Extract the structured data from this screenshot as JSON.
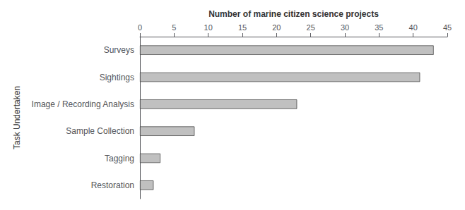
{
  "chart_data": {
    "type": "bar",
    "orientation": "horizontal",
    "xlabel": "Number of marine citizen science projects",
    "ylabel": "Task Undertaken",
    "categories": [
      "Restoration",
      "Tagging",
      "Sample Collection",
      "Image / Recording Analysis",
      "Sightings",
      "Surveys"
    ],
    "values": [
      2,
      3,
      8,
      23,
      41,
      43
    ],
    "color": "#c0c0c0",
    "xlim": [
      0,
      45
    ],
    "xticks": [
      0,
      5,
      10,
      15,
      20,
      25,
      30,
      35,
      40,
      45
    ],
    "grid": false
  }
}
